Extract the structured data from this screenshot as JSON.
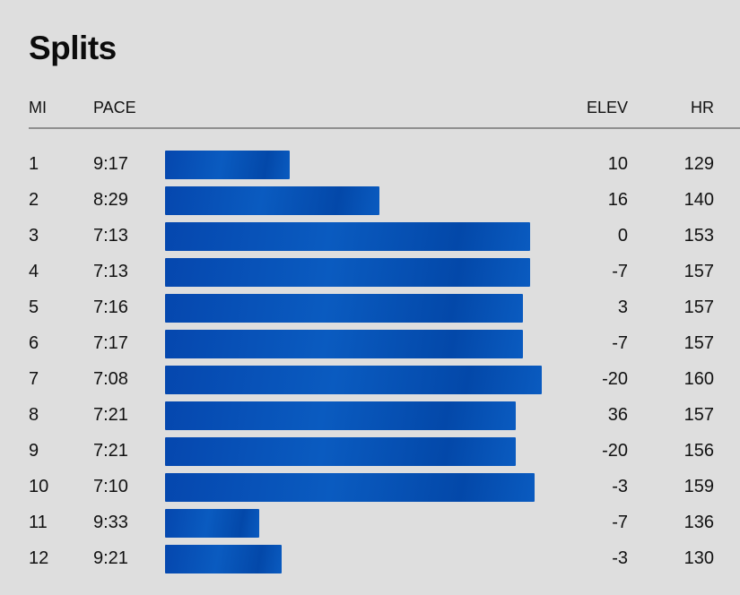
{
  "title": "Splits",
  "columns": {
    "mi": "MI",
    "pace": "PACE",
    "elev": "ELEV",
    "hr": "HR"
  },
  "bar_color": "#0b55b8",
  "splits": [
    {
      "mi": "1",
      "pace": "9:17",
      "elev": "10",
      "hr": "129",
      "bar_fraction": 0.33
    },
    {
      "mi": "2",
      "pace": "8:29",
      "elev": "16",
      "hr": "140",
      "bar_fraction": 0.57
    },
    {
      "mi": "3",
      "pace": "7:13",
      "elev": "0",
      "hr": "153",
      "bar_fraction": 0.97
    },
    {
      "mi": "4",
      "pace": "7:13",
      "elev": "-7",
      "hr": "157",
      "bar_fraction": 0.97
    },
    {
      "mi": "5",
      "pace": "7:16",
      "elev": "3",
      "hr": "157",
      "bar_fraction": 0.95
    },
    {
      "mi": "6",
      "pace": "7:17",
      "elev": "-7",
      "hr": "157",
      "bar_fraction": 0.95
    },
    {
      "mi": "7",
      "pace": "7:08",
      "elev": "-20",
      "hr": "160",
      "bar_fraction": 1.0
    },
    {
      "mi": "8",
      "pace": "7:21",
      "elev": "36",
      "hr": "157",
      "bar_fraction": 0.93
    },
    {
      "mi": "9",
      "pace": "7:21",
      "elev": "-20",
      "hr": "156",
      "bar_fraction": 0.93
    },
    {
      "mi": "10",
      "pace": "7:10",
      "elev": "-3",
      "hr": "159",
      "bar_fraction": 0.98
    },
    {
      "mi": "11",
      "pace": "9:33",
      "elev": "-7",
      "hr": "136",
      "bar_fraction": 0.25
    },
    {
      "mi": "12",
      "pace": "9:21",
      "elev": "-3",
      "hr": "130",
      "bar_fraction": 0.31
    }
  ]
}
